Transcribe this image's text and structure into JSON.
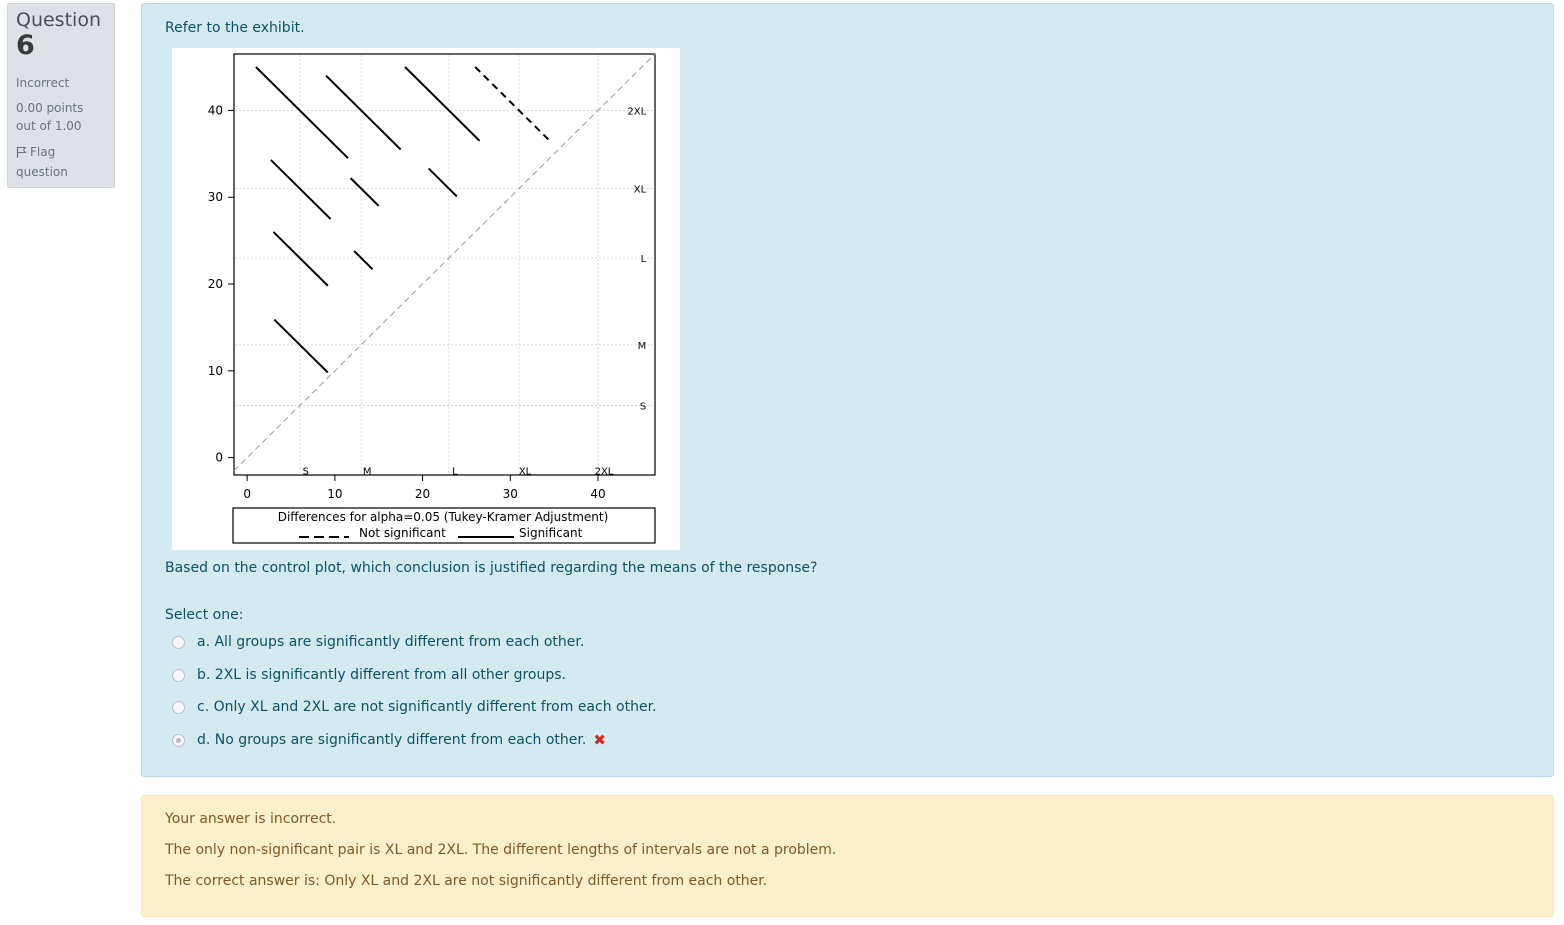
{
  "info": {
    "question_label": "Question",
    "question_number": "6",
    "state": "Incorrect",
    "grade": "0.00 points out of 1.00",
    "flag_label": "Flag question"
  },
  "question": {
    "intro": "Refer to the exhibit.",
    "text": "Based on the control plot, which conclusion is justified regarding the means of the response?",
    "prompt": "Select one:",
    "options": [
      {
        "label": "a. All groups are significantly different from each other.",
        "selected": false
      },
      {
        "label": "b. 2XL is significantly different from all other groups.",
        "selected": false
      },
      {
        "label": "c. Only XL and 2XL are not significantly different from each other.",
        "selected": false
      },
      {
        "label": "d. No groups are significantly different from each other.",
        "selected": true,
        "mark": "✖"
      }
    ],
    "incorrect_color": "#ca3120"
  },
  "feedback": {
    "status": "Your answer is incorrect.",
    "general": "The only non-significant pair is XL and 2XL. The different lengths of intervals are not a problem.",
    "correct_answer": "The correct answer is: Only XL and 2XL are not significantly different from each other."
  },
  "chart_data": {
    "type": "scatter",
    "groups": [
      "S",
      "M",
      "L",
      "XL",
      "2XL"
    ],
    "group_means": [
      6,
      13,
      23,
      31,
      40
    ],
    "x_ticks": [
      "0",
      "10",
      "20",
      "30",
      "40"
    ],
    "y_ticks": [
      "0",
      "10",
      "20",
      "30",
      "40"
    ],
    "xlim": [
      -1.5,
      46.5
    ],
    "ylim": [
      -2,
      46.5
    ],
    "reference_line": "diagonal, dashed",
    "legend_title": "Differences for alpha=0.05 (Tukey-Kramer Adjustment)",
    "legend_items": [
      {
        "label": "Not significant",
        "style": "dashed"
      },
      {
        "label": "Significant",
        "style": "solid"
      }
    ],
    "segments": [
      {
        "pair": "2XL-S",
        "center": [
          6,
          40
        ],
        "significant": true,
        "x_range": [
          1,
          11.5
        ]
      },
      {
        "pair": "2XL-M",
        "center": [
          13,
          40
        ],
        "significant": true,
        "x_range": [
          9,
          17.5
        ]
      },
      {
        "pair": "2XL-L",
        "center": [
          23,
          40
        ],
        "significant": true,
        "x_range": [
          18,
          26.5
        ]
      },
      {
        "pair": "2XL-XL",
        "center": [
          31,
          40
        ],
        "significant": false,
        "x_range": [
          26,
          34.5
        ]
      },
      {
        "pair": "XL-S",
        "center": [
          6,
          31
        ],
        "significant": true,
        "x_range": [
          2.7,
          9.5
        ]
      },
      {
        "pair": "XL-M",
        "center": [
          13,
          31
        ],
        "significant": true,
        "x_range": [
          11.8,
          15
        ]
      },
      {
        "pair": "XL-L",
        "center": [
          23,
          31
        ],
        "significant": true,
        "x_range": [
          20.7,
          23.9
        ]
      },
      {
        "pair": "L-S",
        "center": [
          6,
          23
        ],
        "significant": true,
        "x_range": [
          3,
          9.2
        ]
      },
      {
        "pair": "L-M",
        "center": [
          13,
          23
        ],
        "significant": true,
        "x_range": [
          12.2,
          14.3
        ]
      },
      {
        "pair": "M-S",
        "center": [
          6,
          13
        ],
        "significant": true,
        "x_range": [
          3.1,
          9.2
        ]
      }
    ]
  }
}
